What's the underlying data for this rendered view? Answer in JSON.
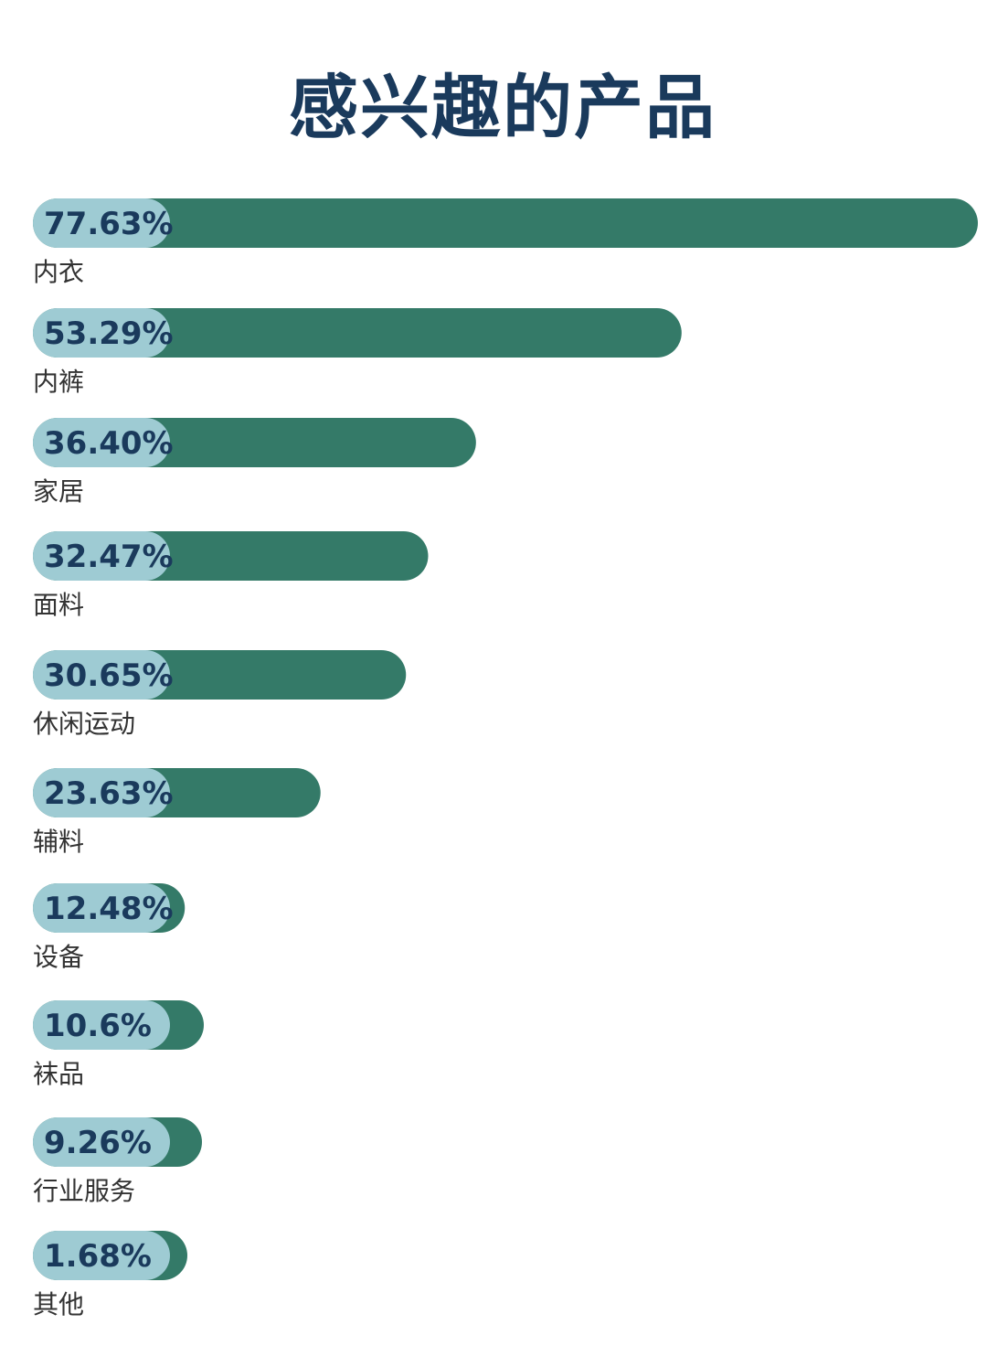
{
  "chart_data": {
    "type": "bar",
    "orientation": "horizontal",
    "title": "感兴趣的产品",
    "unit": "%",
    "categories": [
      "内衣",
      "内裤",
      "家居",
      "面料",
      "休闲运动",
      "辅料",
      "设备",
      "袜品",
      "行业服务",
      "其他"
    ],
    "values": [
      77.63,
      53.29,
      36.4,
      32.47,
      30.65,
      23.63,
      12.48,
      10.6,
      9.26,
      1.68
    ],
    "value_labels": [
      "77.63%",
      "53.29%",
      "36.40%",
      "32.47%",
      "30.65%",
      "23.63%",
      "12.48%",
      "10.6%",
      "9.26%",
      "1.68%"
    ],
    "xlim": [
      0,
      77.63
    ],
    "grid": false,
    "legend": "none",
    "colors": {
      "bar": "#347a68",
      "pill": "#9ecbd3",
      "value_text": "#1a3a5c",
      "category_text": "#333333",
      "title": "#1a3a5c"
    }
  }
}
